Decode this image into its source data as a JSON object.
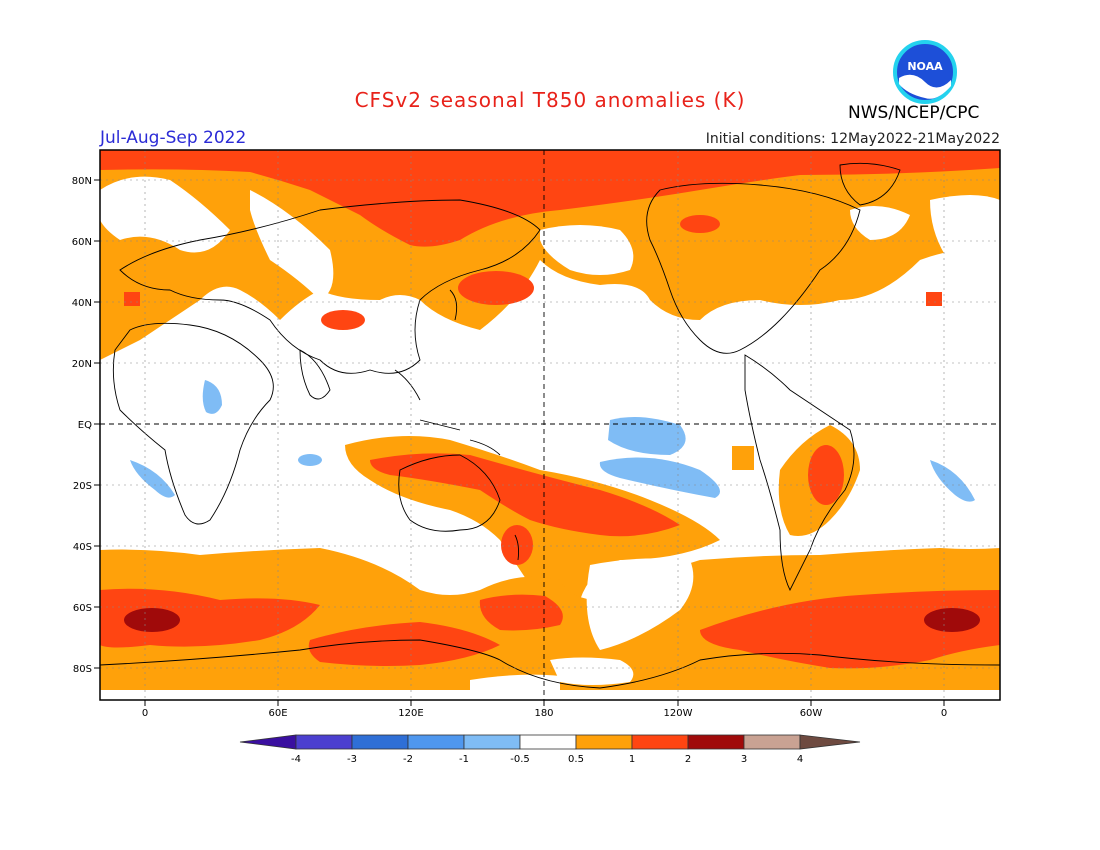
{
  "title": "CFSv2 seasonal T850 anomalies (K)",
  "season": "Jul-Aug-Sep 2022",
  "initial_conditions": "Initial conditions: 12May2022-21May2022",
  "agency": "NWS/NCEP/CPC",
  "logo_text": "NOAA",
  "colors": {
    "title": "#e8221a",
    "season": "#2b2bd6",
    "c_m4": "#3a0fa0",
    "c_m3": "#4b3fcf",
    "c_m2": "#2f6fd6",
    "c_m1": "#4f97ee",
    "c_m05": "#7fbcf5",
    "c_0": "#ffffff",
    "c_05": "#ffa10a",
    "c_1": "#ff4512",
    "c_2": "#a00a0a",
    "c_3": "#c9a293",
    "c_4": "#6e4a40"
  },
  "lat_labels": [
    "80N",
    "60N",
    "40N",
    "20N",
    "EQ",
    "20S",
    "40S",
    "60S",
    "80S"
  ],
  "lon_labels": [
    "0",
    "60E",
    "120E",
    "180",
    "120W",
    "60W",
    "0"
  ],
  "colorbar_labels": [
    "-4",
    "-3",
    "-2",
    "-1",
    "-0.5",
    "0.5",
    "1",
    "2",
    "3",
    "4"
  ]
}
